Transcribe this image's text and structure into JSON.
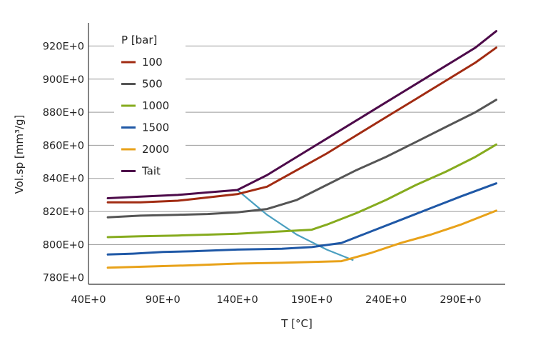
{
  "chart_data": {
    "type": "line",
    "xlabel": "T [°C]",
    "ylabel": "Vol.sp [mm³/g]",
    "xlim": [
      40,
      320
    ],
    "ylim": [
      776,
      934
    ],
    "x_ticks": [
      {
        "value": 40,
        "label": "40E+0"
      },
      {
        "value": 90,
        "label": "90E+0"
      },
      {
        "value": 140,
        "label": "140E+0"
      },
      {
        "value": 190,
        "label": "190E+0"
      },
      {
        "value": 240,
        "label": "240E+0"
      },
      {
        "value": 290,
        "label": "290E+0"
      }
    ],
    "y_ticks": [
      {
        "value": 780,
        "label": "780E+0"
      },
      {
        "value": 800,
        "label": "800E+0"
      },
      {
        "value": 820,
        "label": "820E+0"
      },
      {
        "value": 840,
        "label": "840E+0"
      },
      {
        "value": 860,
        "label": "860E+0"
      },
      {
        "value": 880,
        "label": "880E+0"
      },
      {
        "value": 900,
        "label": "900E+0"
      },
      {
        "value": 920,
        "label": "920E+0"
      }
    ],
    "grid": "horizontal",
    "legend_title": "P [bar]",
    "legend_position": "top-left",
    "series": [
      {
        "name": "100",
        "color": "#a12b12",
        "x": [
          53,
          75,
          100,
          110,
          125,
          140,
          160,
          180,
          200,
          220,
          240,
          260,
          280,
          300,
          314
        ],
        "y": [
          825.5,
          825.5,
          826.5,
          827.5,
          829,
          830.5,
          835,
          845,
          855,
          866,
          877,
          888,
          899,
          910,
          919
        ]
      },
      {
        "name": "500",
        "color": "#555555",
        "x": [
          53,
          75,
          100,
          120,
          140,
          160,
          180,
          200,
          220,
          240,
          260,
          280,
          300,
          314
        ],
        "y": [
          816.5,
          817.5,
          818,
          818.5,
          819.5,
          821.5,
          827,
          836,
          845,
          853,
          862,
          871,
          880,
          887.5
        ]
      },
      {
        "name": "1000",
        "color": "#86ab1e",
        "x": [
          53,
          75,
          100,
          120,
          140,
          160,
          190,
          200,
          220,
          240,
          260,
          280,
          300,
          314
        ],
        "y": [
          804.5,
          805,
          805.5,
          806,
          806.5,
          807.5,
          809,
          812,
          819,
          827,
          836,
          844,
          853,
          860.5
        ]
      },
      {
        "name": "1500",
        "color": "#1f58a6",
        "x": [
          53,
          70,
          90,
          110,
          140,
          170,
          190,
          210,
          230,
          250,
          270,
          290,
          314
        ],
        "y": [
          794,
          794.5,
          795.5,
          796,
          797,
          797.5,
          798.5,
          801,
          808,
          815,
          822,
          829,
          837
        ]
      },
      {
        "name": "2000",
        "color": "#e8a21a",
        "x": [
          53,
          70,
          90,
          110,
          140,
          170,
          190,
          210,
          230,
          250,
          270,
          290,
          314
        ],
        "y": [
          786,
          786.5,
          787,
          787.5,
          788.5,
          789,
          789.5,
          790,
          795,
          801,
          806,
          812,
          820.5
        ]
      },
      {
        "name": "Tait",
        "color": "#4d0b4a",
        "x": [
          53,
          75,
          100,
          120,
          140,
          160,
          180,
          200,
          220,
          240,
          260,
          280,
          300,
          314
        ],
        "y": [
          828,
          829,
          830,
          831.5,
          833,
          842,
          853,
          864,
          875,
          886,
          897,
          908,
          919,
          929
        ]
      }
    ],
    "transition_line": {
      "color": "#4a9fc0",
      "x": [
        140,
        160,
        180,
        200,
        218
      ],
      "y": [
        833,
        818,
        806,
        797,
        790.5
      ]
    }
  }
}
